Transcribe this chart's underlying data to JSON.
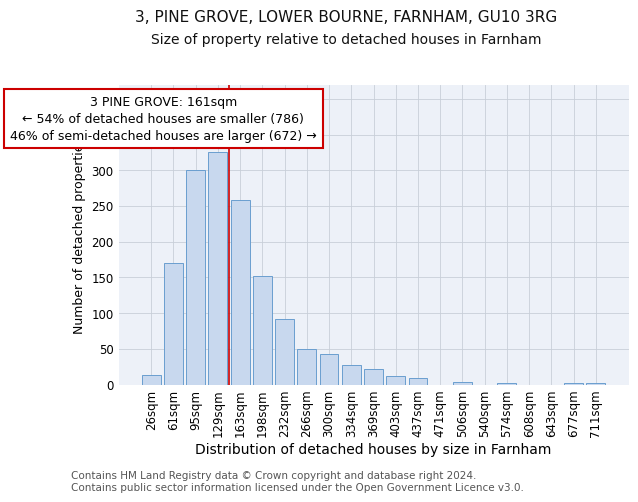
{
  "title1": "3, PINE GROVE, LOWER BOURNE, FARNHAM, GU10 3RG",
  "title2": "Size of property relative to detached houses in Farnham",
  "xlabel": "Distribution of detached houses by size in Farnham",
  "ylabel": "Number of detached properties",
  "categories": [
    "26sqm",
    "61sqm",
    "95sqm",
    "129sqm",
    "163sqm",
    "198sqm",
    "232sqm",
    "266sqm",
    "300sqm",
    "334sqm",
    "369sqm",
    "403sqm",
    "437sqm",
    "471sqm",
    "506sqm",
    "540sqm",
    "574sqm",
    "608sqm",
    "643sqm",
    "677sqm",
    "711sqm"
  ],
  "values": [
    13,
    170,
    300,
    325,
    258,
    152,
    92,
    50,
    43,
    28,
    22,
    12,
    9,
    0,
    4,
    0,
    2,
    0,
    0,
    2,
    2
  ],
  "bar_color": "#c8d8ee",
  "bar_edge_color": "#6a9ecf",
  "vline_index": 3.5,
  "vline_color": "#cc0000",
  "annotation_text": "3 PINE GROVE: 161sqm\n← 54% of detached houses are smaller (786)\n46% of semi-detached houses are larger (672) →",
  "annotation_box_color": "#ffffff",
  "annotation_box_edge_color": "#cc0000",
  "ylim": [
    0,
    420
  ],
  "yticks": [
    0,
    50,
    100,
    150,
    200,
    250,
    300,
    350,
    400
  ],
  "grid_color": "#c8cfd8",
  "bg_color": "#edf1f8",
  "footer": "Contains HM Land Registry data © Crown copyright and database right 2024.\nContains public sector information licensed under the Open Government Licence v3.0.",
  "title1_fontsize": 11,
  "title2_fontsize": 10,
  "xlabel_fontsize": 10,
  "ylabel_fontsize": 9,
  "tick_fontsize": 8.5,
  "annotation_fontsize": 9,
  "footer_fontsize": 7.5
}
